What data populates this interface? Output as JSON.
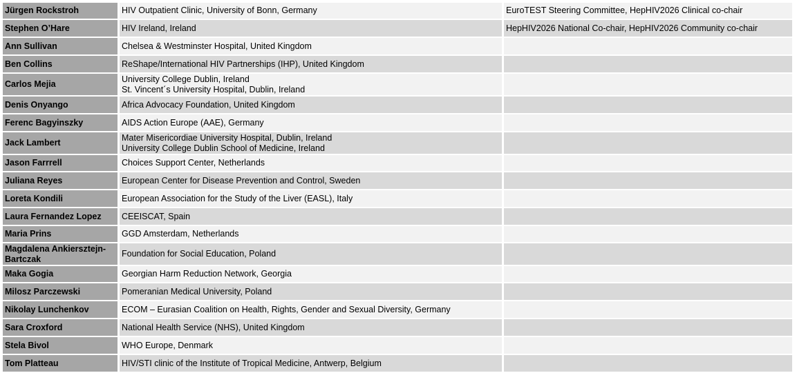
{
  "rows": [
    {
      "name": "Jürgen Rockstroh",
      "affiliation": [
        "HIV Outpatient Clinic, University of Bonn, Germany"
      ],
      "role": "EuroTEST Steering Committee, HepHIV2026 Clinical co-chair"
    },
    {
      "name": "Stephen O’Hare",
      "affiliation": [
        "HIV Ireland, Ireland"
      ],
      "role": "HepHIV2026 National Co-chair, HepHIV2026 Community co-chair"
    },
    {
      "name": "Ann Sullivan",
      "affiliation": [
        "Chelsea & Westminster Hospital, United Kingdom"
      ],
      "role": ""
    },
    {
      "name": "Ben Collins",
      "affiliation": [
        "ReShape/International HIV Partnerships (IHP), United Kingdom"
      ],
      "role": ""
    },
    {
      "name": "Carlos Mejia",
      "affiliation": [
        "University College Dublin, Ireland",
        "St. Vincent´s University Hospital, Dublin, Ireland"
      ],
      "role": ""
    },
    {
      "name": "Denis Onyango",
      "affiliation": [
        "Africa Advocacy Foundation, United Kingdom"
      ],
      "role": ""
    },
    {
      "name": "Ferenc Bagyinszky",
      "affiliation": [
        "AIDS Action Europe (AAE), Germany"
      ],
      "role": ""
    },
    {
      "name": "Jack Lambert",
      "affiliation": [
        "Mater Misericordiae University Hospital, Dublin, Ireland",
        "University College Dublin School of Medicine, Ireland"
      ],
      "role": ""
    },
    {
      "name": "Jason Farrrell",
      "affiliation": [
        "Choices Support Center, Netherlands"
      ],
      "role": ""
    },
    {
      "name": "Juliana Reyes",
      "affiliation": [
        "European Center for Disease Prevention and Control, Sweden"
      ],
      "role": ""
    },
    {
      "name": "Loreta Kondili",
      "affiliation": [
        "European Association for the Study of the Liver (EASL), Italy"
      ],
      "role": ""
    },
    {
      "name": "Laura Fernandez Lopez",
      "affiliation": [
        "CEEISCAT, Spain"
      ],
      "role": ""
    },
    {
      "name": "Maria Prins",
      "affiliation": [
        "GGD Amsterdam, Netherlands"
      ],
      "role": ""
    },
    {
      "name": "Magdalena Ankiersztejn-Bartczak",
      "affiliation": [
        "Foundation for Social Education, Poland"
      ],
      "role": ""
    },
    {
      "name": "Maka Gogia",
      "affiliation": [
        "Georgian Harm Reduction Network, Georgia"
      ],
      "role": ""
    },
    {
      "name": "Milosz Parczewski",
      "affiliation": [
        "Pomeranian Medical University, Poland"
      ],
      "role": ""
    },
    {
      "name": "Nikolay Lunchenkov",
      "affiliation": [
        "ECOM – Eurasian Coalition on Health, Rights, Gender and Sexual Diversity, Germany"
      ],
      "role": ""
    },
    {
      "name": "Sara Croxford",
      "affiliation": [
        "National Health Service (NHS), United Kingdom"
      ],
      "role": ""
    },
    {
      "name": "Stela Bivol",
      "affiliation": [
        "WHO Europe, Denmark"
      ],
      "role": ""
    },
    {
      "name": "Tom Platteau",
      "affiliation": [
        "HIV/STI clinic of the Institute of Tropical Medicine, Antwerp, Belgium"
      ],
      "role": ""
    }
  ]
}
